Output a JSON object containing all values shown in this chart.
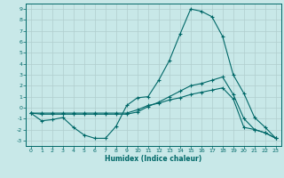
{
  "background_color": "#c8e8e8",
  "grid_color": "#b0cece",
  "line_color": "#006868",
  "xlabel": "Humidex (Indice chaleur)",
  "xlim": [
    -0.5,
    23.5
  ],
  "ylim": [
    -3.5,
    9.5
  ],
  "xticks": [
    0,
    1,
    2,
    3,
    4,
    5,
    6,
    7,
    8,
    9,
    10,
    11,
    12,
    13,
    14,
    15,
    16,
    17,
    18,
    19,
    20,
    21,
    22,
    23
  ],
  "yticks": [
    -3,
    -2,
    -1,
    0,
    1,
    2,
    3,
    4,
    5,
    6,
    7,
    8,
    9
  ],
  "series": [
    {
      "x": [
        0,
        1,
        2,
        3,
        4,
        5,
        6,
        7,
        8,
        9,
        10,
        11,
        12,
        13,
        14,
        15,
        16,
        17,
        18,
        19,
        20,
        21,
        22,
        23
      ],
      "y": [
        -0.5,
        -1.2,
        -1.1,
        -0.9,
        -1.8,
        -2.5,
        -2.8,
        -2.8,
        -1.7,
        0.2,
        0.9,
        1.0,
        2.5,
        4.3,
        6.7,
        9.0,
        8.8,
        8.3,
        6.5,
        3.0,
        1.3,
        -0.9,
        -1.8,
        -2.8
      ]
    },
    {
      "x": [
        0,
        1,
        2,
        3,
        4,
        5,
        6,
        7,
        8,
        9,
        10,
        11,
        12,
        13,
        14,
        15,
        16,
        17,
        18,
        19,
        20,
        21,
        22,
        23
      ],
      "y": [
        -0.5,
        -0.6,
        -0.6,
        -0.6,
        -0.6,
        -0.6,
        -0.6,
        -0.6,
        -0.6,
        -0.6,
        -0.4,
        0.1,
        0.5,
        1.0,
        1.5,
        2.0,
        2.2,
        2.5,
        2.8,
        1.2,
        -1.0,
        -2.0,
        -2.3,
        -2.8
      ]
    },
    {
      "x": [
        0,
        1,
        2,
        3,
        4,
        5,
        6,
        7,
        8,
        9,
        10,
        11,
        12,
        13,
        14,
        15,
        16,
        17,
        18,
        19,
        20,
        21,
        22,
        23
      ],
      "y": [
        -0.5,
        -0.5,
        -0.5,
        -0.5,
        -0.5,
        -0.5,
        -0.5,
        -0.5,
        -0.5,
        -0.5,
        -0.2,
        0.2,
        0.4,
        0.7,
        0.9,
        1.2,
        1.4,
        1.6,
        1.8,
        0.8,
        -1.8,
        -2.0,
        -2.3,
        -2.8
      ]
    }
  ]
}
